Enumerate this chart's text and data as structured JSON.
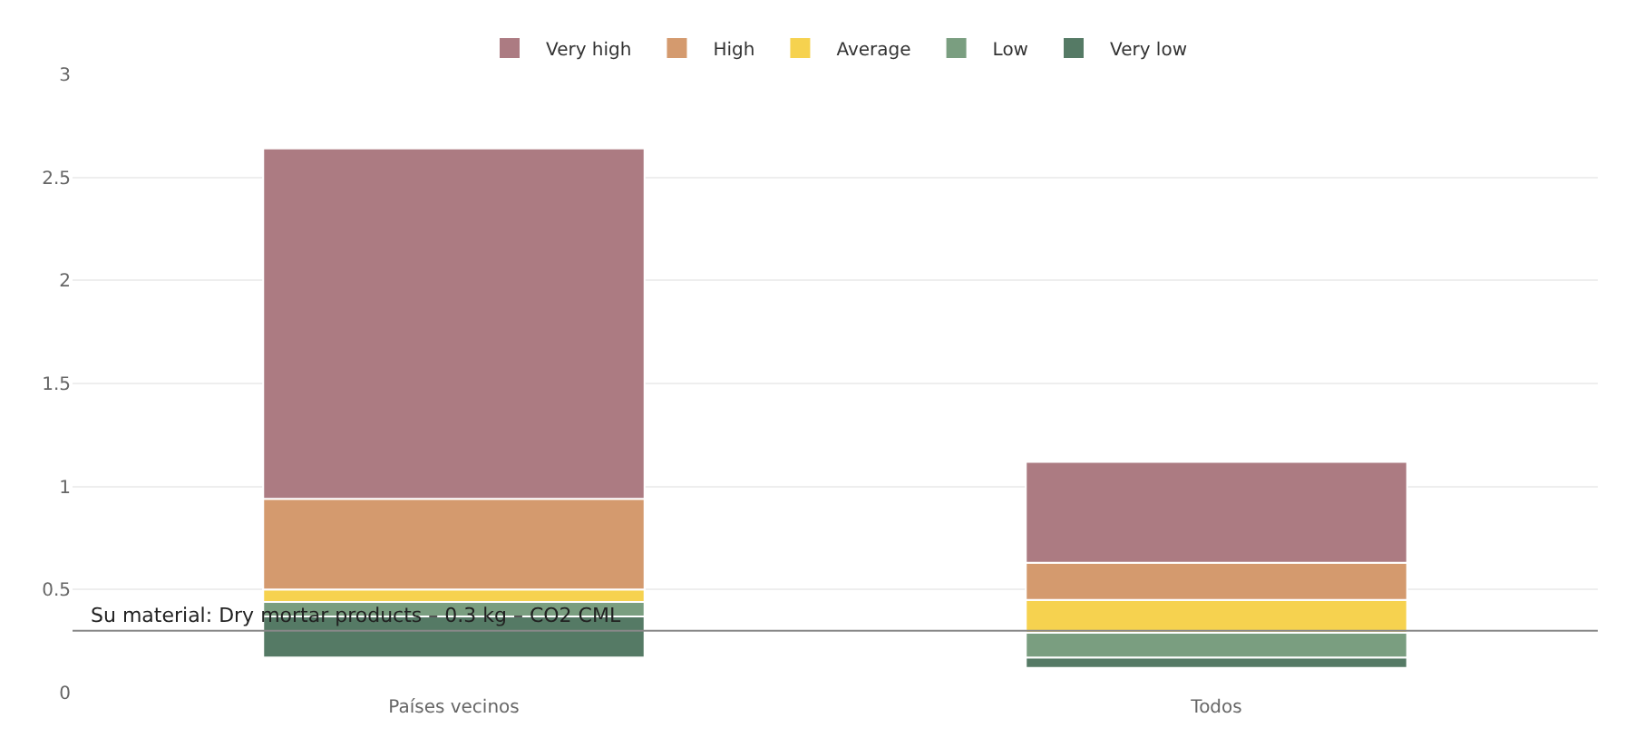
{
  "chart_data": {
    "type": "bar",
    "stacked": true,
    "categories": [
      "Países vecinos",
      "Todos"
    ],
    "series": [
      {
        "name": "Very low",
        "color": "#557a65",
        "base": [
          0.17,
          0.12
        ],
        "values": [
          0.2,
          0.05
        ]
      },
      {
        "name": "Low",
        "color": "#7a9e80",
        "values": [
          0.07,
          0.12
        ]
      },
      {
        "name": "Average",
        "color": "#f6d24f",
        "values": [
          0.06,
          0.16
        ]
      },
      {
        "name": "High",
        "color": "#d49a6e",
        "values": [
          0.44,
          0.18
        ]
      },
      {
        "name": "Very high",
        "color": "#ac7b82",
        "values": [
          1.7,
          0.49
        ]
      }
    ],
    "ylim": [
      0,
      3
    ],
    "yticks": [
      0,
      0.5,
      1,
      1.5,
      2,
      2.5,
      3
    ],
    "grid": "y",
    "legend": "top",
    "ref_lines": [
      {
        "axis": "y",
        "value": 0.3,
        "label": "Su material: Dry mortar products – 0.3 kg – CO2 CML",
        "color": "#888888"
      }
    ]
  }
}
